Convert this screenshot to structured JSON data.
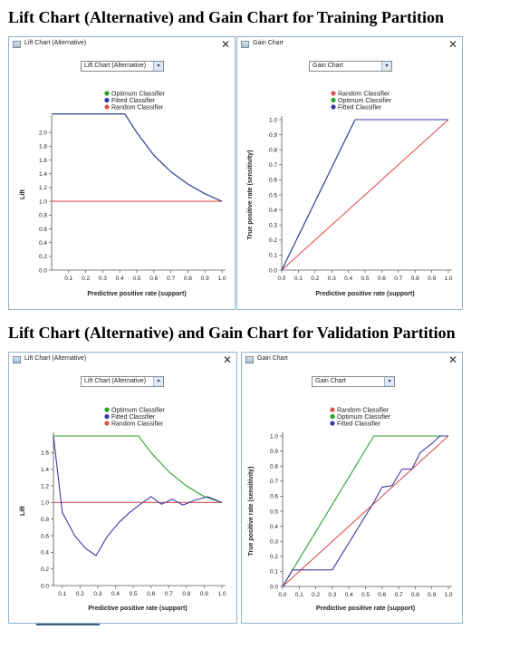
{
  "headings": {
    "training": "Lift Chart (Alternative) and Gain Chart for Training Partition",
    "validation": "Lift Chart (Alternative) and Gain Chart for Validation Partition"
  },
  "windows": {
    "lift_title": "Lift Chart (Alternative)",
    "gain_title": "Gain Chart",
    "close_glyph": "✕",
    "lift_dropdown": "Lift Chart (Alternative)",
    "gain_dropdown": "Gain Chart",
    "dropdown_arrow": "▾"
  },
  "colors": {
    "optimum": "#2ca02c",
    "fitted": "#3a3aa8",
    "random": "#d9534f",
    "axis": "#555555",
    "window_border": "#8fb4cf"
  },
  "chart_data": [
    {
      "id": "train_lift",
      "type": "line",
      "ylabel": "Lift",
      "xlabel": "Predictive positive rate (support)",
      "xlim": [
        0,
        1
      ],
      "ylim": [
        0,
        2.2
      ],
      "xticks": [
        "0.1",
        "0.2",
        "0.3",
        "0.4",
        "0.5",
        "0.6",
        "0.7",
        "0.8",
        "0.9",
        "1.0"
      ],
      "yticks": [
        "0.0",
        "0.2",
        "0.4",
        "0.6",
        "0.8",
        "1.0",
        "1.2",
        "1.4",
        "1.6",
        "1.8",
        "2.0"
      ],
      "xticks_values": [
        0.1,
        0.2,
        0.3,
        0.4,
        0.5,
        0.6,
        0.7,
        0.8,
        0.9,
        1.0
      ],
      "yticks_values": [
        0,
        0.2,
        0.4,
        0.6,
        0.8,
        1.0,
        1.2,
        1.4,
        1.6,
        1.8,
        2.0
      ],
      "legend": [
        "Optimum Classifier",
        "Fitted Classifier",
        "Random Classifier"
      ],
      "legend_colors": [
        "#2ca02c",
        "#3a3aa8",
        "#d9534f"
      ],
      "series": [
        {
          "name": "Random Classifier",
          "color": "#d9534f",
          "x": [
            0,
            1
          ],
          "y": [
            1.0,
            1.0
          ]
        },
        {
          "name": "Optimum Classifier",
          "color": "#2ca02c",
          "x": [
            0,
            0.43,
            0.5,
            0.6,
            0.7,
            0.8,
            0.9,
            1.0
          ],
          "y": [
            2.27,
            2.27,
            2.0,
            1.67,
            1.43,
            1.25,
            1.11,
            1.0
          ]
        },
        {
          "name": "Fitted Classifier",
          "color": "#3a3aa8",
          "x": [
            0,
            0.43,
            0.5,
            0.6,
            0.7,
            0.8,
            0.9,
            1.0
          ],
          "y": [
            2.27,
            2.27,
            2.0,
            1.67,
            1.43,
            1.25,
            1.11,
            1.0
          ]
        }
      ]
    },
    {
      "id": "train_gain",
      "type": "line",
      "ylabel": "True positive rate (sensitivity)",
      "xlabel": "Predictive positive rate (support)",
      "xlim": [
        0,
        1
      ],
      "ylim": [
        0,
        1
      ],
      "xticks": [
        "0.0",
        "0.1",
        "0.2",
        "0.3",
        "0.4",
        "0.5",
        "0.6",
        "0.7",
        "0.8",
        "0.9",
        "1.0"
      ],
      "yticks": [
        "0.0",
        "0.1",
        "0.2",
        "0.3",
        "0.4",
        "0.5",
        "0.6",
        "0.7",
        "0.8",
        "0.9",
        "1.0"
      ],
      "xticks_values": [
        0,
        0.1,
        0.2,
        0.3,
        0.4,
        0.5,
        0.6,
        0.7,
        0.8,
        0.9,
        1.0
      ],
      "yticks_values": [
        0,
        0.1,
        0.2,
        0.3,
        0.4,
        0.5,
        0.6,
        0.7,
        0.8,
        0.9,
        1.0
      ],
      "legend": [
        "Random Classifier",
        "Optimum Classifier",
        "Fitted Classifier"
      ],
      "legend_colors": [
        "#d9534f",
        "#2ca02c",
        "#3a3aa8"
      ],
      "series": [
        {
          "name": "Random Classifier",
          "color": "#d9534f",
          "x": [
            0,
            1
          ],
          "y": [
            0,
            1
          ]
        },
        {
          "name": "Optimum Classifier",
          "color": "#2ca02c",
          "x": [
            0,
            0.44,
            1.0
          ],
          "y": [
            0,
            1.0,
            1.0
          ]
        },
        {
          "name": "Fitted Classifier",
          "color": "#3a3aa8",
          "x": [
            0,
            0.44,
            1.0
          ],
          "y": [
            0,
            1.0,
            1.0
          ]
        }
      ]
    },
    {
      "id": "valid_lift",
      "type": "line",
      "ylabel": "Lift",
      "xlabel": "Predictive positive rate (support)",
      "xlim": [
        0.05,
        1
      ],
      "ylim": [
        0,
        1.8
      ],
      "xticks": [
        "0.1",
        "0.2",
        "0.3",
        "0.4",
        "0.5",
        "0.6",
        "0.7",
        "0.8",
        "0.9",
        "1.0"
      ],
      "yticks": [
        "0.0",
        "0.2",
        "0.4",
        "0.6",
        "0.8",
        "1.0",
        "1.2",
        "1.4",
        "1.6"
      ],
      "xticks_values": [
        0.1,
        0.2,
        0.3,
        0.4,
        0.5,
        0.6,
        0.7,
        0.8,
        0.9,
        1.0
      ],
      "yticks_values": [
        0,
        0.2,
        0.4,
        0.6,
        0.8,
        1.0,
        1.2,
        1.4,
        1.6
      ],
      "legend": [
        "Optimum Classifier",
        "Fitted Classifier",
        "Random Classifier"
      ],
      "legend_colors": [
        "#2ca02c",
        "#3a3aa8",
        "#d9534f"
      ],
      "series": [
        {
          "name": "Random Classifier",
          "color": "#d9534f",
          "x": [
            0.05,
            1.0
          ],
          "y": [
            1.0,
            1.0
          ]
        },
        {
          "name": "Optimum Classifier",
          "color": "#2ca02c",
          "x": [
            0.05,
            0.53,
            0.6,
            0.7,
            0.8,
            0.9,
            1.0
          ],
          "y": [
            1.8,
            1.8,
            1.6,
            1.37,
            1.2,
            1.07,
            1.0
          ]
        },
        {
          "name": "Fitted Classifier",
          "color": "#3a3aa8",
          "x": [
            0.05,
            0.1,
            0.17,
            0.23,
            0.29,
            0.35,
            0.42,
            0.48,
            0.54,
            0.6,
            0.66,
            0.72,
            0.78,
            0.85,
            0.92,
            1.0
          ],
          "y": [
            1.8,
            0.88,
            0.6,
            0.45,
            0.36,
            0.58,
            0.76,
            0.88,
            0.98,
            1.07,
            0.98,
            1.04,
            0.97,
            1.03,
            1.07,
            1.0
          ]
        }
      ]
    },
    {
      "id": "valid_gain",
      "type": "line",
      "ylabel": "True positive rate (sensitivity)",
      "xlabel": "Predictive positive rate (support)",
      "xlim": [
        0,
        1
      ],
      "ylim": [
        0,
        1
      ],
      "xticks": [
        "0.0",
        "0.1",
        "0.2",
        "0.3",
        "0.4",
        "0.5",
        "0.6",
        "0.7",
        "0.8",
        "0.9",
        "1.0"
      ],
      "yticks": [
        "0.0",
        "0.1",
        "0.2",
        "0.3",
        "0.4",
        "0.5",
        "0.6",
        "0.7",
        "0.8",
        "0.9",
        "1.0"
      ],
      "xticks_values": [
        0,
        0.1,
        0.2,
        0.3,
        0.4,
        0.5,
        0.6,
        0.7,
        0.8,
        0.9,
        1.0
      ],
      "yticks_values": [
        0,
        0.1,
        0.2,
        0.3,
        0.4,
        0.5,
        0.6,
        0.7,
        0.8,
        0.9,
        1.0
      ],
      "legend": [
        "Random Classifier",
        "Optimum Classifier",
        "Fitted Classifier"
      ],
      "legend_colors": [
        "#d9534f",
        "#2ca02c",
        "#3a3aa8"
      ],
      "series": [
        {
          "name": "Random Classifier",
          "color": "#d9534f",
          "x": [
            0,
            1
          ],
          "y": [
            0,
            1
          ]
        },
        {
          "name": "Optimum Classifier",
          "color": "#2ca02c",
          "x": [
            0,
            0.55,
            1.0
          ],
          "y": [
            0,
            1.0,
            1.0
          ]
        },
        {
          "name": "Fitted Classifier",
          "color": "#3a3aa8",
          "x": [
            0,
            0.06,
            0.3,
            0.55,
            0.6,
            0.66,
            0.72,
            0.78,
            0.83,
            0.9,
            0.95,
            1.0
          ],
          "y": [
            0,
            0.11,
            0.11,
            0.56,
            0.66,
            0.67,
            0.78,
            0.78,
            0.89,
            0.95,
            1.0,
            1.0
          ]
        }
      ]
    }
  ]
}
